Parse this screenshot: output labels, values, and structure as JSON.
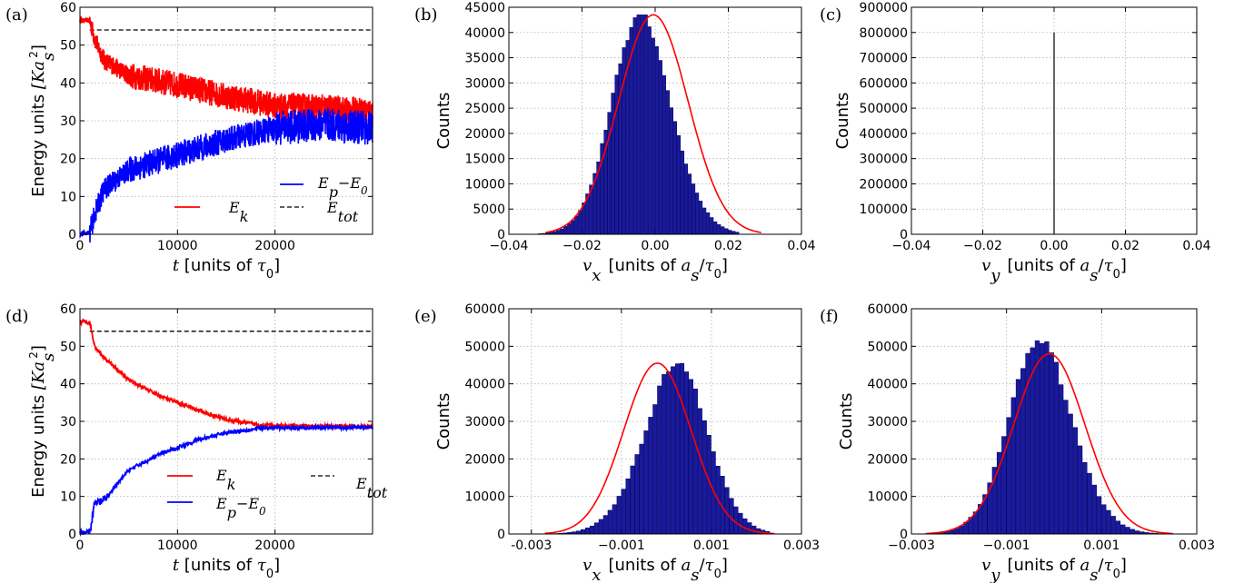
{
  "colors": {
    "ek": "#ff0000",
    "ep": "#0000ff",
    "etot": "#000000",
    "bar": "#1a1a9c",
    "bar_edge": "#000060",
    "fit": "#ff0000"
  },
  "chart_data": [
    {
      "id": "a",
      "panel_label": "(a)",
      "type": "line",
      "ylabel": "Energy units [Ka_s^2]",
      "ylabel_main": "Energy units ",
      "xlabel_var": "t",
      "xlabel_units": " [units of ",
      "xlabel_sym": "τ",
      "xlabel_sub": "0",
      "xlabel_close": "]",
      "xlim": [
        0,
        30000
      ],
      "ylim": [
        0,
        60
      ],
      "xticks": [
        0,
        10000,
        20000
      ],
      "yticks": [
        0,
        10,
        20,
        30,
        40,
        50,
        60
      ],
      "grid": true,
      "legend": "lower-center",
      "noisy": true,
      "series": [
        {
          "name": "E_k",
          "x": [
            0,
            1000,
            1600,
            2500,
            5000,
            10000,
            15000,
            20000,
            25000,
            30000
          ],
          "y": [
            56.5,
            56.5,
            51,
            46,
            42,
            39.5,
            36.5,
            34,
            33.5,
            32.5
          ]
        },
        {
          "name": "E_p−E_0",
          "x": [
            0,
            1000,
            1600,
            2500,
            5000,
            10000,
            15000,
            20000,
            25000,
            30000
          ],
          "y": [
            0,
            0.5,
            6,
            12,
            17,
            21,
            25,
            28,
            29,
            28
          ]
        },
        {
          "name": "E_tot",
          "x": [
            1000,
            30000
          ],
          "y": [
            54,
            54
          ]
        }
      ],
      "legend_entries": [
        "E_k",
        "E_p−E_0",
        "E_tot"
      ]
    },
    {
      "id": "b",
      "panel_label": "(b)",
      "type": "bar",
      "ylabel": "Counts",
      "xlabel_var": "v_x",
      "xlabel_units": "[units of a_s/τ_0]",
      "xlim": [
        -0.04,
        0.04
      ],
      "ylim": [
        0,
        45000
      ],
      "xticks": [
        -0.04,
        -0.02,
        0.0,
        0.02,
        0.04
      ],
      "xtick_labels": [
        "−0.04",
        "−0.02",
        "0.00",
        "0.02",
        "0.04"
      ],
      "yticks": [
        0,
        5000,
        10000,
        15000,
        20000,
        25000,
        30000,
        35000,
        40000,
        45000
      ],
      "grid": true,
      "hist": {
        "center": -0.0015,
        "sd": 0.0085,
        "peak": 43500,
        "skew": -1.3,
        "bin": 0.001,
        "min": -0.032,
        "max": 0.023
      },
      "fit": {
        "center": -0.0005,
        "sd": 0.0095,
        "peak": 43500,
        "min": -0.03,
        "max": 0.029
      }
    },
    {
      "id": "c",
      "panel_label": "(c)",
      "type": "bar",
      "ylabel": "Counts",
      "xlabel_var": "v_y",
      "xlabel_units": "[units of a_s/τ_0]",
      "xlim": [
        -0.04,
        0.04
      ],
      "ylim": [
        0,
        900000
      ],
      "xticks": [
        -0.04,
        -0.02,
        0.0,
        0.02,
        0.04
      ],
      "xtick_labels": [
        "−0.04",
        "−0.02",
        "0.00",
        "0.02",
        "0.04"
      ],
      "yticks": [
        0,
        100000,
        200000,
        300000,
        400000,
        500000,
        600000,
        700000,
        800000,
        900000
      ],
      "grid": true,
      "spike": {
        "x": 0.0,
        "value": 800000
      }
    },
    {
      "id": "d",
      "panel_label": "(d)",
      "type": "line",
      "ylabel": "Energy units [Ka_s^2]",
      "ylabel_main": "Energy units ",
      "xlabel_var": "t",
      "xlabel_units": " [units of ",
      "xlabel_sym": "τ",
      "xlabel_sub": "0",
      "xlabel_close": "]",
      "xlim": [
        0,
        30000
      ],
      "ylim": [
        0,
        60
      ],
      "xticks": [
        0,
        10000,
        20000
      ],
      "yticks": [
        0,
        10,
        20,
        30,
        40,
        50,
        60
      ],
      "grid": true,
      "legend": "lower-center",
      "noisy": false,
      "series": [
        {
          "name": "E_k",
          "x": [
            0,
            1000,
            1500,
            2500,
            5000,
            8000,
            10000,
            12000,
            15000,
            18000,
            20000,
            30000
          ],
          "y": [
            56.5,
            56.5,
            50,
            47,
            41,
            37,
            35,
            33,
            30.5,
            29.2,
            28.8,
            28.6
          ]
        },
        {
          "name": "E_p−E_0",
          "x": [
            0,
            1000,
            1500,
            2500,
            5000,
            8000,
            10000,
            12000,
            15000,
            18000,
            20000,
            30000
          ],
          "y": [
            0.5,
            0.5,
            8,
            9,
            17,
            21,
            23,
            25,
            27,
            28,
            28.3,
            28.4
          ]
        },
        {
          "name": "E_tot",
          "x": [
            1000,
            30000
          ],
          "y": [
            54,
            54
          ]
        }
      ],
      "legend_entries": [
        "E_k",
        "E_tot",
        "E_p−E_0"
      ]
    },
    {
      "id": "e",
      "panel_label": "(e)",
      "type": "bar",
      "ylabel": "Counts",
      "xlabel_var": "v_x",
      "xlabel_units": "[units of a_s/τ_0]",
      "xlim": [
        -0.0035,
        0.003
      ],
      "ylim": [
        0,
        60000
      ],
      "xticks": [
        -0.003,
        -0.001,
        0.001,
        0.003
      ],
      "xtick_labels": [
        "-0.003",
        "−0.001",
        "0.001",
        "0.003"
      ],
      "yticks": [
        0,
        10000,
        20000,
        30000,
        40000,
        50000,
        60000
      ],
      "grid": true,
      "hist": {
        "center": 0.0,
        "sd": 0.00075,
        "peak": 46000,
        "skew": 1.5,
        "bin": 0.0001,
        "min": -0.0028,
        "max": 0.0023
      },
      "fit": {
        "center": -0.0002,
        "sd": 0.00075,
        "peak": 45500,
        "min": -0.0027,
        "max": 0.0024
      }
    },
    {
      "id": "f",
      "panel_label": "(f)",
      "type": "bar",
      "ylabel": "Counts",
      "xlabel_var": "v_y",
      "xlabel_units": "[units of a_s/τ_0]",
      "xlim": [
        -0.003,
        0.003
      ],
      "ylim": [
        0,
        60000
      ],
      "xticks": [
        -0.003,
        -0.001,
        0.001,
        0.003
      ],
      "xtick_labels": [
        "−0.003",
        "−0.001",
        "0.001",
        "0.003"
      ],
      "yticks": [
        0,
        10000,
        20000,
        30000,
        40000,
        50000,
        60000
      ],
      "grid": true,
      "hist": {
        "center": -0.0001,
        "sd": 0.0007,
        "peak": 51500,
        "skew": -1.2,
        "bin": 0.0001,
        "min": -0.0028,
        "max": 0.0023
      },
      "fit": {
        "center": -0.0001,
        "sd": 0.00075,
        "peak": 48000,
        "min": -0.0027,
        "max": 0.0025
      }
    }
  ]
}
